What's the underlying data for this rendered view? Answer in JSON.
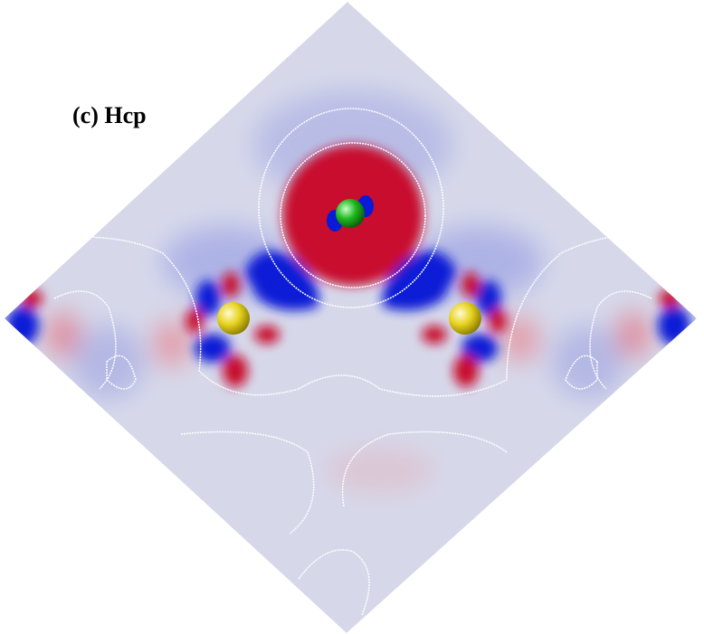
{
  "panel": {
    "label": "(c) Hcp"
  }
}
